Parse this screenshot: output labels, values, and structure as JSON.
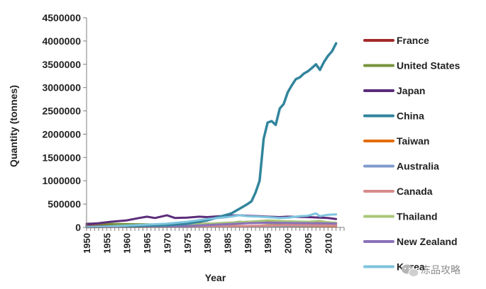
{
  "chart_data": {
    "type": "line",
    "title": "",
    "xlabel": "Year",
    "ylabel": "Quantity (tonnes)",
    "xlim": [
      1950,
      2014
    ],
    "ylim": [
      0,
      4500000
    ],
    "x_ticks": [
      1950,
      1955,
      1960,
      1965,
      1970,
      1975,
      1980,
      1985,
      1990,
      1995,
      2000,
      2005,
      2010
    ],
    "y_ticks": [
      0,
      500000,
      1000000,
      1500000,
      2000000,
      2500000,
      3000000,
      3500000,
      4000000,
      4500000
    ],
    "x_tick_labels": [
      "1950",
      "1955",
      "1960",
      "1965",
      "1970",
      "1975",
      "1980",
      "1985",
      "1990",
      "1995",
      "2000",
      "2005",
      "2010"
    ],
    "y_tick_labels": [
      "0",
      "500000",
      "1000000",
      "1500000",
      "2000000",
      "2500000",
      "3000000",
      "3500000",
      "4000000",
      "4500000"
    ],
    "grid": false,
    "legend_position": "right",
    "series": [
      {
        "name": "France",
        "color": "#a32a2a",
        "points": [
          [
            1950,
            30000
          ],
          [
            1955,
            40000
          ],
          [
            1960,
            45000
          ],
          [
            1965,
            50000
          ],
          [
            1970,
            60000
          ],
          [
            1975,
            70000
          ],
          [
            1980,
            80000
          ],
          [
            1985,
            90000
          ],
          [
            1990,
            120000
          ],
          [
            1995,
            110000
          ],
          [
            2000,
            100000
          ],
          [
            2005,
            95000
          ],
          [
            2010,
            85000
          ],
          [
            2012,
            80000
          ]
        ]
      },
      {
        "name": "United States",
        "color": "#77933c",
        "points": [
          [
            1950,
            80000
          ],
          [
            1955,
            75000
          ],
          [
            1960,
            70000
          ],
          [
            1965,
            65000
          ],
          [
            1970,
            55000
          ],
          [
            1975,
            50000
          ],
          [
            1980,
            60000
          ],
          [
            1985,
            90000
          ],
          [
            1988,
            120000
          ],
          [
            1990,
            110000
          ],
          [
            1995,
            90000
          ],
          [
            2000,
            80000
          ],
          [
            2005,
            70000
          ],
          [
            2010,
            60000
          ],
          [
            2012,
            50000
          ]
        ]
      },
      {
        "name": "Japan",
        "color": "#5b2c7a",
        "points": [
          [
            1950,
            70000
          ],
          [
            1953,
            90000
          ],
          [
            1956,
            120000
          ],
          [
            1960,
            150000
          ],
          [
            1963,
            200000
          ],
          [
            1965,
            230000
          ],
          [
            1967,
            200000
          ],
          [
            1969,
            240000
          ],
          [
            1970,
            260000
          ],
          [
            1972,
            200000
          ],
          [
            1975,
            210000
          ],
          [
            1978,
            230000
          ],
          [
            1980,
            220000
          ],
          [
            1983,
            240000
          ],
          [
            1985,
            250000
          ],
          [
            1988,
            260000
          ],
          [
            1990,
            250000
          ],
          [
            1993,
            240000
          ],
          [
            1995,
            230000
          ],
          [
            1998,
            220000
          ],
          [
            2000,
            230000
          ],
          [
            2003,
            225000
          ],
          [
            2005,
            220000
          ],
          [
            2008,
            210000
          ],
          [
            2010,
            200000
          ],
          [
            2012,
            180000
          ]
        ]
      },
      {
        "name": "China",
        "color": "#31859c",
        "points": [
          [
            1950,
            10000
          ],
          [
            1955,
            20000
          ],
          [
            1960,
            30000
          ],
          [
            1965,
            40000
          ],
          [
            1970,
            50000
          ],
          [
            1975,
            80000
          ],
          [
            1980,
            150000
          ],
          [
            1984,
            250000
          ],
          [
            1986,
            300000
          ],
          [
            1988,
            400000
          ],
          [
            1990,
            500000
          ],
          [
            1991,
            560000
          ],
          [
            1992,
            750000
          ],
          [
            1993,
            1000000
          ],
          [
            1994,
            1900000
          ],
          [
            1995,
            2250000
          ],
          [
            1996,
            2280000
          ],
          [
            1997,
            2200000
          ],
          [
            1998,
            2550000
          ],
          [
            1999,
            2650000
          ],
          [
            2000,
            2900000
          ],
          [
            2001,
            3050000
          ],
          [
            2002,
            3180000
          ],
          [
            2003,
            3220000
          ],
          [
            2004,
            3300000
          ],
          [
            2005,
            3350000
          ],
          [
            2006,
            3420000
          ],
          [
            2007,
            3500000
          ],
          [
            2008,
            3380000
          ],
          [
            2009,
            3550000
          ],
          [
            2010,
            3680000
          ],
          [
            2011,
            3780000
          ],
          [
            2012,
            3950000
          ]
        ]
      },
      {
        "name": "Taiwan",
        "color": "#e46c0a",
        "points": [
          [
            1950,
            5000
          ],
          [
            1960,
            10000
          ],
          [
            1970,
            20000
          ],
          [
            1975,
            25000
          ],
          [
            1980,
            30000
          ],
          [
            1985,
            35000
          ],
          [
            1990,
            30000
          ],
          [
            1995,
            25000
          ],
          [
            2000,
            25000
          ],
          [
            2005,
            20000
          ],
          [
            2010,
            20000
          ],
          [
            2012,
            15000
          ]
        ]
      },
      {
        "name": "Australia",
        "color": "#7f9ccb",
        "points": [
          [
            1950,
            10000
          ],
          [
            1960,
            12000
          ],
          [
            1970,
            15000
          ],
          [
            1975,
            18000
          ],
          [
            1980,
            20000
          ],
          [
            1985,
            25000
          ],
          [
            1990,
            30000
          ],
          [
            1995,
            32000
          ],
          [
            2000,
            35000
          ],
          [
            2005,
            36000
          ],
          [
            2010,
            38000
          ],
          [
            2012,
            38000
          ]
        ]
      },
      {
        "name": "Canada",
        "color": "#d88a8a",
        "points": [
          [
            1950,
            5000
          ],
          [
            1960,
            8000
          ],
          [
            1970,
            10000
          ],
          [
            1975,
            12000
          ],
          [
            1980,
            15000
          ],
          [
            1985,
            20000
          ],
          [
            1990,
            30000
          ],
          [
            1995,
            40000
          ],
          [
            2000,
            50000
          ],
          [
            2005,
            45000
          ],
          [
            2010,
            40000
          ],
          [
            2012,
            40000
          ]
        ]
      },
      {
        "name": "Thailand",
        "color": "#a9c77a",
        "points": [
          [
            1950,
            10000
          ],
          [
            1960,
            20000
          ],
          [
            1970,
            40000
          ],
          [
            1975,
            60000
          ],
          [
            1980,
            80000
          ],
          [
            1985,
            100000
          ],
          [
            1990,
            120000
          ],
          [
            1995,
            150000
          ],
          [
            2000,
            130000
          ],
          [
            2005,
            120000
          ],
          [
            2008,
            140000
          ],
          [
            2010,
            110000
          ],
          [
            2012,
            100000
          ]
        ]
      },
      {
        "name": "New Zealand",
        "color": "#8a72b8",
        "points": [
          [
            1950,
            5000
          ],
          [
            1960,
            10000
          ],
          [
            1970,
            20000
          ],
          [
            1975,
            30000
          ],
          [
            1980,
            50000
          ],
          [
            1985,
            70000
          ],
          [
            1990,
            90000
          ],
          [
            1995,
            100000
          ],
          [
            2000,
            95000
          ],
          [
            2005,
            90000
          ],
          [
            2010,
            85000
          ],
          [
            2012,
            80000
          ]
        ]
      },
      {
        "name": "Korea",
        "color": "#7dc4de",
        "points": [
          [
            1950,
            10000
          ],
          [
            1955,
            20000
          ],
          [
            1960,
            40000
          ],
          [
            1965,
            60000
          ],
          [
            1970,
            80000
          ],
          [
            1975,
            120000
          ],
          [
            1980,
            180000
          ],
          [
            1985,
            220000
          ],
          [
            1988,
            260000
          ],
          [
            1990,
            240000
          ],
          [
            1993,
            230000
          ],
          [
            1995,
            220000
          ],
          [
            1998,
            200000
          ],
          [
            2000,
            210000
          ],
          [
            2003,
            240000
          ],
          [
            2005,
            250000
          ],
          [
            2007,
            300000
          ],
          [
            2008,
            240000
          ],
          [
            2010,
            270000
          ],
          [
            2012,
            280000
          ]
        ]
      }
    ]
  },
  "watermark": {
    "text": "冻品攻略",
    "icon": "wechat-icon"
  }
}
